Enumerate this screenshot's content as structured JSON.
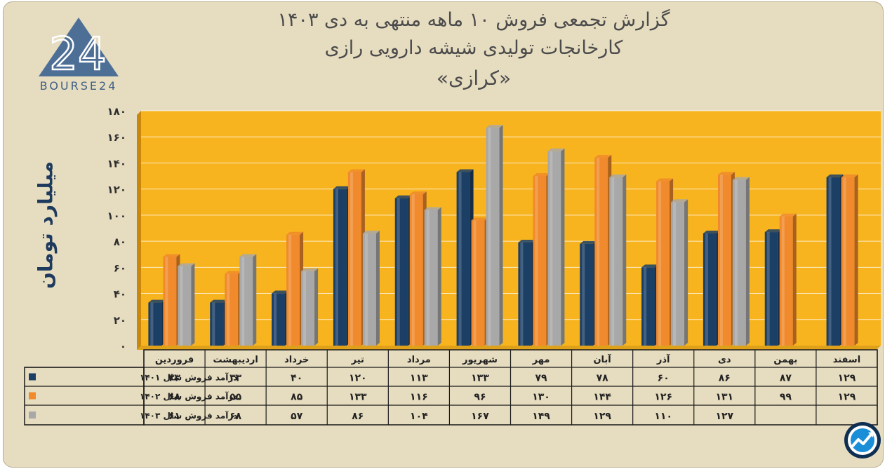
{
  "title": {
    "line1": "گزارش تجمعی فروش ۱۰ ماهه منتهی به دی ۱۴۰۳",
    "line2": "کارخانجات تولیدی شیشه دارویی رازی",
    "line3": "«کرازی»"
  },
  "logo": {
    "text": "BOURSE24",
    "mark": "24"
  },
  "colors": {
    "series1": "#1c3f66",
    "series2": "#f08a2c",
    "series3": "#a8a8a8",
    "plot_bg": "#f7b41e",
    "background": "#e6dcc0"
  },
  "chart_data": {
    "type": "bar",
    "ylabel": "میلیارد تومان",
    "ylim": [
      0,
      180
    ],
    "y_ticks": [
      "۰",
      "۲۰",
      "۴۰",
      "۶۰",
      "۸۰",
      "۱۰۰",
      "۱۲۰",
      "۱۴۰",
      "۱۶۰",
      "۱۸۰"
    ],
    "categories": [
      "فروردین",
      "اردیبهشت",
      "خرداد",
      "تیر",
      "مرداد",
      "شهریور",
      "مهر",
      "آبان",
      "آذر",
      "دی",
      "بهمن",
      "اسفند"
    ],
    "grid": true,
    "legend": "table-left",
    "series": [
      {
        "name": "درآمد فروش سال ۱۴۰۱",
        "values": [
          33,
          33,
          40,
          120,
          113,
          133,
          79,
          78,
          60,
          86,
          87,
          129
        ],
        "labels": [
          "۳۳",
          "۳۳",
          "۴۰",
          "۱۲۰",
          "۱۱۳",
          "۱۳۳",
          "۷۹",
          "۷۸",
          "۶۰",
          "۸۶",
          "۸۷",
          "۱۲۹"
        ]
      },
      {
        "name": "درآمد فروش  سال ۱۴۰۲",
        "values": [
          68,
          55,
          85,
          133,
          116,
          96,
          130,
          144,
          126,
          131,
          99,
          129
        ],
        "labels": [
          "۶۸",
          "۵۵",
          "۸۵",
          "۱۳۳",
          "۱۱۶",
          "۹۶",
          "۱۳۰",
          "۱۴۴",
          "۱۲۶",
          "۱۳۱",
          "۹۹",
          "۱۲۹"
        ]
      },
      {
        "name": "درآمد فروش  سال ۱۴۰۳",
        "values": [
          61,
          68,
          57,
          86,
          104,
          167,
          149,
          129,
          110,
          127,
          null,
          null
        ],
        "labels": [
          "۶۱",
          "۶۸",
          "۵۷",
          "۸۶",
          "۱۰۴",
          "۱۶۷",
          "۱۴۹",
          "۱۲۹",
          "۱۱۰",
          "۱۲۷",
          "",
          ""
        ]
      }
    ]
  }
}
